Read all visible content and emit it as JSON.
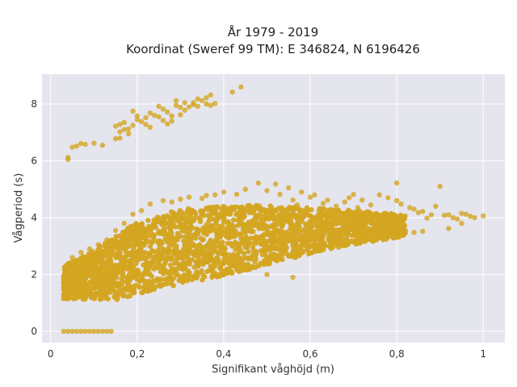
{
  "chart_data": {
    "type": "scatter",
    "title_line1": "År 1979 - 2019",
    "title_line2": "Koordinat (Sweref 99 TM): E 346824, N 6196426",
    "xlabel": "Signifikant våghöjd (m)",
    "ylabel": "Vågperiod (s)",
    "xlim": [
      -0.02,
      1.05
    ],
    "ylim": [
      -0.4,
      9.05
    ],
    "xticks": [
      0,
      0.2,
      0.4,
      0.6,
      0.8,
      1.0
    ],
    "xtick_labels": [
      "0",
      "0,2",
      "0,4",
      "0,6",
      "0,8",
      "1"
    ],
    "yticks": [
      0,
      2,
      4,
      6,
      8
    ],
    "ytick_labels": [
      "0",
      "2",
      "4",
      "6",
      "8"
    ],
    "grid": true,
    "marker_color": "#D4A521",
    "plot_bg": "#E5E5EE",
    "points_upper_cluster": [
      [
        0.04,
        6.05
      ],
      [
        0.04,
        6.12
      ],
      [
        0.05,
        6.48
      ],
      [
        0.06,
        6.52
      ],
      [
        0.07,
        6.61
      ],
      [
        0.08,
        6.58
      ],
      [
        0.1,
        6.62
      ],
      [
        0.12,
        6.55
      ],
      [
        0.15,
        6.78
      ],
      [
        0.16,
        7.02
      ],
      [
        0.15,
        7.22
      ],
      [
        0.16,
        7.28
      ],
      [
        0.17,
        7.35
      ],
      [
        0.18,
        7.12
      ],
      [
        0.19,
        7.25
      ],
      [
        0.2,
        7.45
      ],
      [
        0.21,
        7.38
      ],
      [
        0.22,
        7.52
      ],
      [
        0.23,
        7.68
      ],
      [
        0.22,
        7.28
      ],
      [
        0.24,
        7.6
      ],
      [
        0.25,
        7.55
      ],
      [
        0.26,
        7.42
      ],
      [
        0.27,
        7.72
      ],
      [
        0.28,
        7.58
      ],
      [
        0.29,
        7.95
      ],
      [
        0.3,
        7.62
      ],
      [
        0.31,
        7.78
      ],
      [
        0.32,
        7.9
      ],
      [
        0.33,
        7.98
      ],
      [
        0.34,
        7.92
      ],
      [
        0.35,
        8.12
      ],
      [
        0.36,
        8.22
      ],
      [
        0.37,
        7.95
      ],
      [
        0.38,
        8.02
      ],
      [
        0.19,
        7.75
      ],
      [
        0.23,
        7.18
      ],
      [
        0.27,
        7.3
      ],
      [
        0.29,
        8.12
      ],
      [
        0.3,
        7.88
      ],
      [
        0.33,
        8.05
      ],
      [
        0.34,
        8.18
      ],
      [
        0.42,
        8.42
      ],
      [
        0.44,
        8.6
      ],
      [
        0.37,
        8.32
      ],
      [
        0.36,
        8.0
      ],
      [
        0.28,
        7.4
      ],
      [
        0.26,
        7.82
      ],
      [
        0.17,
        7.1
      ],
      [
        0.18,
        6.95
      ],
      [
        0.16,
        6.8
      ],
      [
        0.2,
        7.58
      ],
      [
        0.25,
        7.92
      ],
      [
        0.31,
        8.05
      ]
    ],
    "points_zero_row": [
      [
        0.03,
        0.0
      ],
      [
        0.04,
        0.0
      ],
      [
        0.05,
        0.0
      ],
      [
        0.06,
        0.0
      ],
      [
        0.07,
        0.0
      ],
      [
        0.08,
        0.0
      ],
      [
        0.09,
        0.0
      ],
      [
        0.1,
        0.0
      ],
      [
        0.11,
        0.0
      ],
      [
        0.12,
        0.0
      ],
      [
        0.13,
        0.0
      ],
      [
        0.14,
        0.0
      ]
    ],
    "points_sparse_high": [
      [
        0.7,
        4.82
      ],
      [
        0.72,
        4.62
      ],
      [
        0.74,
        4.45
      ],
      [
        0.76,
        4.8
      ],
      [
        0.78,
        4.7
      ],
      [
        0.8,
        4.6
      ],
      [
        0.81,
        4.48
      ],
      [
        0.8,
        5.22
      ],
      [
        0.83,
        4.35
      ],
      [
        0.84,
        4.3
      ],
      [
        0.85,
        4.18
      ],
      [
        0.86,
        4.22
      ],
      [
        0.87,
        3.98
      ],
      [
        0.88,
        4.1
      ],
      [
        0.89,
        4.4
      ],
      [
        0.9,
        5.1
      ],
      [
        0.91,
        4.08
      ],
      [
        0.92,
        4.1
      ],
      [
        0.93,
        4.0
      ],
      [
        0.94,
        3.95
      ],
      [
        0.95,
        4.15
      ],
      [
        0.96,
        4.12
      ],
      [
        0.97,
        4.05
      ],
      [
        0.98,
        4.0
      ],
      [
        1.0,
        4.06
      ],
      [
        0.95,
        3.8
      ],
      [
        0.92,
        3.62
      ],
      [
        0.86,
        3.52
      ],
      [
        0.84,
        3.48
      ],
      [
        0.82,
        3.55
      ],
      [
        0.78,
        3.68
      ],
      [
        0.76,
        3.55
      ],
      [
        0.75,
        3.7
      ],
      [
        0.73,
        3.85
      ],
      [
        0.68,
        4.55
      ],
      [
        0.66,
        4.4
      ],
      [
        0.64,
        4.62
      ],
      [
        0.6,
        4.72
      ],
      [
        0.58,
        4.9
      ],
      [
        0.55,
        5.05
      ],
      [
        0.52,
        5.18
      ],
      [
        0.5,
        4.95
      ],
      [
        0.48,
        5.22
      ],
      [
        0.45,
        5.0
      ],
      [
        0.43,
        4.82
      ],
      [
        0.4,
        4.9
      ],
      [
        0.38,
        4.8
      ],
      [
        0.36,
        4.78
      ],
      [
        0.35,
        4.68
      ],
      [
        0.32,
        4.72
      ],
      [
        0.3,
        4.65
      ],
      [
        0.28,
        4.55
      ],
      [
        0.26,
        4.6
      ],
      [
        0.23,
        4.48
      ],
      [
        0.21,
        4.25
      ],
      [
        0.19,
        4.12
      ],
      [
        0.17,
        3.8
      ],
      [
        0.15,
        3.55
      ],
      [
        0.13,
        3.22
      ],
      [
        0.11,
        3.05
      ],
      [
        0.09,
        2.9
      ],
      [
        0.07,
        2.78
      ],
      [
        0.05,
        2.6
      ],
      [
        0.03,
        1.82
      ],
      [
        0.03,
        1.55
      ],
      [
        0.04,
        1.4
      ],
      [
        0.05,
        1.25
      ],
      [
        0.03,
        1.15
      ],
      [
        0.56,
        1.9
      ],
      [
        0.5,
        2.0
      ],
      [
        0.46,
        2.18
      ],
      [
        0.42,
        2.3
      ],
      [
        0.38,
        2.05
      ],
      [
        0.34,
        1.95
      ],
      [
        0.3,
        1.8
      ],
      [
        0.56,
        4.62
      ],
      [
        0.61,
        4.8
      ],
      [
        0.63,
        4.5
      ],
      [
        0.69,
        4.7
      ],
      [
        0.71,
        4.35
      ],
      [
        0.53,
        4.82
      ],
      [
        0.57,
        4.45
      ],
      [
        0.62,
        4.25
      ],
      [
        0.66,
        4.15
      ]
    ],
    "dense_band": {
      "description": "dense cloud of many overlapping points",
      "x_range": [
        0.03,
        0.82
      ],
      "y_lower_at_x": [
        [
          0.03,
          1.15
        ],
        [
          0.15,
          1.1
        ],
        [
          0.25,
          1.5
        ],
        [
          0.4,
          1.95
        ],
        [
          0.55,
          2.55
        ],
        [
          0.7,
          3.05
        ],
        [
          0.82,
          3.35
        ]
      ],
      "y_upper_at_x": [
        [
          0.03,
          2.3
        ],
        [
          0.1,
          2.85
        ],
        [
          0.2,
          3.85
        ],
        [
          0.3,
          4.3
        ],
        [
          0.45,
          4.45
        ],
        [
          0.6,
          4.35
        ],
        [
          0.75,
          4.2
        ],
        [
          0.82,
          4.1
        ]
      ]
    }
  }
}
